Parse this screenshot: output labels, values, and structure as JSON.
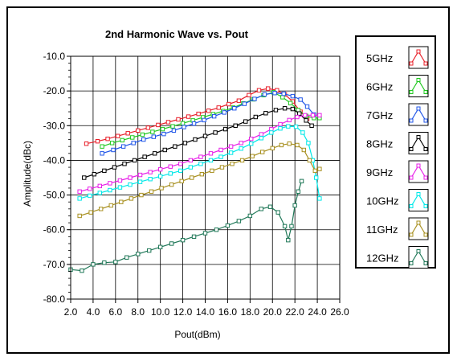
{
  "chart_data": {
    "type": "line",
    "title": "2nd Harmonic Wave vs. Pout",
    "xlabel": "Pout(dBm)",
    "ylabel": "Amplitude(dBc)",
    "xlim": [
      2.0,
      26.0
    ],
    "ylim": [
      -80.0,
      -10.0
    ],
    "xticks": [
      "2.0",
      "4.0",
      "6.0",
      "8.0",
      "10.0",
      "12.0",
      "14.0",
      "16.0",
      "18.0",
      "20.0",
      "22.0",
      "24.0",
      "26.0"
    ],
    "yticks": [
      "-10.0",
      "-20.0",
      "-30.0",
      "-40.0",
      "-50.0",
      "-60.0",
      "-70.0",
      "-80.0"
    ],
    "grid": true,
    "legend_position": "right",
    "series": [
      {
        "name": "5GHz",
        "color": "#e8202a",
        "points": [
          [
            3.4,
            -35.2
          ],
          [
            4.4,
            -34.5
          ],
          [
            5.3,
            -33.8
          ],
          [
            6.2,
            -33.0
          ],
          [
            7.1,
            -32.2
          ],
          [
            8.0,
            -31.4
          ],
          [
            8.9,
            -30.6
          ],
          [
            9.8,
            -29.8
          ],
          [
            10.7,
            -29.0
          ],
          [
            11.6,
            -28.2
          ],
          [
            12.5,
            -27.4
          ],
          [
            13.4,
            -26.6
          ],
          [
            14.3,
            -25.7
          ],
          [
            15.2,
            -24.8
          ],
          [
            16.1,
            -23.8
          ],
          [
            17.0,
            -22.8
          ],
          [
            17.9,
            -21.2
          ],
          [
            18.8,
            -19.8
          ],
          [
            19.6,
            -19.3
          ],
          [
            20.4,
            -19.8
          ],
          [
            21.1,
            -21.0
          ],
          [
            21.8,
            -23.0
          ],
          [
            22.5,
            -26.0
          ],
          [
            23.1,
            -28.0
          ]
        ]
      },
      {
        "name": "6GHz",
        "color": "#1fc81f",
        "points": [
          [
            4.8,
            -36.0
          ],
          [
            5.7,
            -35.0
          ],
          [
            6.6,
            -34.2
          ],
          [
            7.5,
            -33.4
          ],
          [
            8.4,
            -32.6
          ],
          [
            9.3,
            -31.8
          ],
          [
            10.2,
            -31.0
          ],
          [
            11.1,
            -30.2
          ],
          [
            12.0,
            -29.3
          ],
          [
            12.9,
            -28.5
          ],
          [
            13.8,
            -27.6
          ],
          [
            14.7,
            -26.7
          ],
          [
            15.6,
            -25.8
          ],
          [
            16.5,
            -24.8
          ],
          [
            17.4,
            -23.6
          ],
          [
            18.3,
            -22.4
          ],
          [
            19.2,
            -21.2
          ],
          [
            20.1,
            -20.4
          ],
          [
            20.9,
            -21.8
          ],
          [
            21.6,
            -23.5
          ],
          [
            22.3,
            -25.5
          ],
          [
            23.0,
            -27.2
          ],
          [
            23.7,
            -27.8
          ],
          [
            24.2,
            -27.8
          ]
        ]
      },
      {
        "name": "7GHz",
        "color": "#1f55e8",
        "points": [
          [
            4.8,
            -38.0
          ],
          [
            5.8,
            -37.0
          ],
          [
            6.7,
            -36.0
          ],
          [
            7.6,
            -35.0
          ],
          [
            8.5,
            -34.0
          ],
          [
            9.4,
            -33.2
          ],
          [
            10.3,
            -32.4
          ],
          [
            11.2,
            -31.4
          ],
          [
            12.1,
            -30.4
          ],
          [
            13.0,
            -29.4
          ],
          [
            13.9,
            -28.4
          ],
          [
            14.8,
            -27.3
          ],
          [
            15.7,
            -26.2
          ],
          [
            16.6,
            -25.0
          ],
          [
            17.5,
            -23.7
          ],
          [
            18.4,
            -22.3
          ],
          [
            19.3,
            -21.0
          ],
          [
            20.2,
            -20.6
          ],
          [
            21.0,
            -20.8
          ],
          [
            21.8,
            -21.5
          ],
          [
            22.5,
            -22.5
          ],
          [
            23.1,
            -24.5
          ],
          [
            23.7,
            -26.8
          ]
        ]
      },
      {
        "name": "8GHz",
        "color": "#000000",
        "points": [
          [
            3.2,
            -45.0
          ],
          [
            4.1,
            -44.0
          ],
          [
            5.0,
            -43.0
          ],
          [
            5.9,
            -42.0
          ],
          [
            6.8,
            -41.0
          ],
          [
            7.7,
            -40.0
          ],
          [
            8.6,
            -39.0
          ],
          [
            9.5,
            -38.0
          ],
          [
            10.4,
            -37.0
          ],
          [
            11.3,
            -36.0
          ],
          [
            12.2,
            -35.0
          ],
          [
            13.1,
            -34.0
          ],
          [
            14.0,
            -33.0
          ],
          [
            14.9,
            -32.0
          ],
          [
            15.8,
            -31.0
          ],
          [
            16.7,
            -30.0
          ],
          [
            17.6,
            -28.8
          ],
          [
            18.5,
            -27.5
          ],
          [
            19.4,
            -26.4
          ],
          [
            20.3,
            -25.5
          ],
          [
            21.1,
            -25.0
          ],
          [
            21.8,
            -25.2
          ],
          [
            22.4,
            -26.5
          ],
          [
            23.0,
            -28.5
          ],
          [
            23.5,
            -30.0
          ]
        ]
      },
      {
        "name": "9GHz",
        "color": "#e820e8",
        "points": [
          [
            2.8,
            -49.0
          ],
          [
            3.7,
            -48.2
          ],
          [
            4.6,
            -47.4
          ],
          [
            5.5,
            -46.6
          ],
          [
            6.4,
            -45.8
          ],
          [
            7.3,
            -45.0
          ],
          [
            8.2,
            -44.2
          ],
          [
            9.1,
            -43.4
          ],
          [
            10.0,
            -42.6
          ],
          [
            10.9,
            -41.8
          ],
          [
            11.8,
            -41.0
          ],
          [
            12.7,
            -40.0
          ],
          [
            13.6,
            -39.0
          ],
          [
            14.5,
            -38.0
          ],
          [
            15.4,
            -37.0
          ],
          [
            16.3,
            -36.0
          ],
          [
            17.2,
            -35.0
          ],
          [
            18.1,
            -33.8
          ],
          [
            19.0,
            -32.5
          ],
          [
            19.9,
            -31.0
          ],
          [
            20.7,
            -29.6
          ],
          [
            21.5,
            -28.4
          ],
          [
            22.2,
            -27.5
          ],
          [
            22.9,
            -27.0
          ],
          [
            23.6,
            -27.0
          ],
          [
            24.2,
            -27.0
          ]
        ]
      },
      {
        "name": "10GHz",
        "color": "#00e8e8",
        "points": [
          [
            2.8,
            -51.0
          ],
          [
            3.7,
            -50.2
          ],
          [
            4.6,
            -49.4
          ],
          [
            5.5,
            -48.6
          ],
          [
            6.4,
            -47.8
          ],
          [
            7.3,
            -47.0
          ],
          [
            8.2,
            -46.2
          ],
          [
            9.1,
            -45.4
          ],
          [
            10.0,
            -44.6
          ],
          [
            10.9,
            -43.8
          ],
          [
            11.8,
            -43.0
          ],
          [
            12.7,
            -42.0
          ],
          [
            13.6,
            -41.0
          ],
          [
            14.5,
            -40.0
          ],
          [
            15.4,
            -39.0
          ],
          [
            16.3,
            -37.8
          ],
          [
            17.2,
            -36.6
          ],
          [
            18.1,
            -35.2
          ],
          [
            19.0,
            -33.6
          ],
          [
            19.9,
            -32.0
          ],
          [
            20.7,
            -30.8
          ],
          [
            21.4,
            -30.2
          ],
          [
            22.1,
            -30.3
          ],
          [
            22.7,
            -32.0
          ],
          [
            23.2,
            -35.0
          ],
          [
            23.6,
            -40.0
          ],
          [
            23.9,
            -45.0
          ],
          [
            24.2,
            -51.0
          ]
        ]
      },
      {
        "name": "11GHz",
        "color": "#a89020",
        "points": [
          [
            2.8,
            -56.0
          ],
          [
            3.8,
            -55.0
          ],
          [
            4.7,
            -54.0
          ],
          [
            5.6,
            -53.0
          ],
          [
            6.5,
            -52.0
          ],
          [
            7.4,
            -51.0
          ],
          [
            8.3,
            -50.0
          ],
          [
            9.2,
            -49.0
          ],
          [
            10.1,
            -48.0
          ],
          [
            11.0,
            -47.0
          ],
          [
            11.9,
            -46.0
          ],
          [
            12.8,
            -45.0
          ],
          [
            13.7,
            -44.0
          ],
          [
            14.6,
            -43.0
          ],
          [
            15.5,
            -42.0
          ],
          [
            16.4,
            -41.0
          ],
          [
            17.3,
            -40.0
          ],
          [
            18.2,
            -38.8
          ],
          [
            19.1,
            -37.6
          ],
          [
            20.0,
            -36.5
          ],
          [
            20.8,
            -35.6
          ],
          [
            21.5,
            -35.2
          ],
          [
            22.2,
            -35.6
          ],
          [
            22.8,
            -37.0
          ],
          [
            23.3,
            -40.0
          ],
          [
            23.8,
            -43.0
          ],
          [
            24.2,
            -42.5
          ]
        ]
      },
      {
        "name": "12GHz",
        "color": "#207858",
        "points": [
          [
            2.0,
            -71.5
          ],
          [
            3.0,
            -71.8
          ],
          [
            4.0,
            -70.0
          ],
          [
            5.0,
            -69.5
          ],
          [
            6.0,
            -69.3
          ],
          [
            7.0,
            -68.0
          ],
          [
            8.0,
            -67.0
          ],
          [
            9.0,
            -66.0
          ],
          [
            10.0,
            -65.0
          ],
          [
            11.0,
            -64.0
          ],
          [
            12.0,
            -63.0
          ],
          [
            13.0,
            -62.0
          ],
          [
            14.0,
            -61.0
          ],
          [
            15.0,
            -60.0
          ],
          [
            16.0,
            -58.8
          ],
          [
            17.0,
            -57.5
          ],
          [
            18.0,
            -56.0
          ],
          [
            19.0,
            -54.0
          ],
          [
            19.8,
            -53.4
          ],
          [
            20.5,
            -55.0
          ],
          [
            21.1,
            -59.0
          ],
          [
            21.4,
            -63.0
          ],
          [
            21.7,
            -59.0
          ],
          [
            22.0,
            -53.0
          ],
          [
            22.3,
            -49.0
          ],
          [
            22.6,
            -46.0
          ]
        ]
      }
    ]
  }
}
